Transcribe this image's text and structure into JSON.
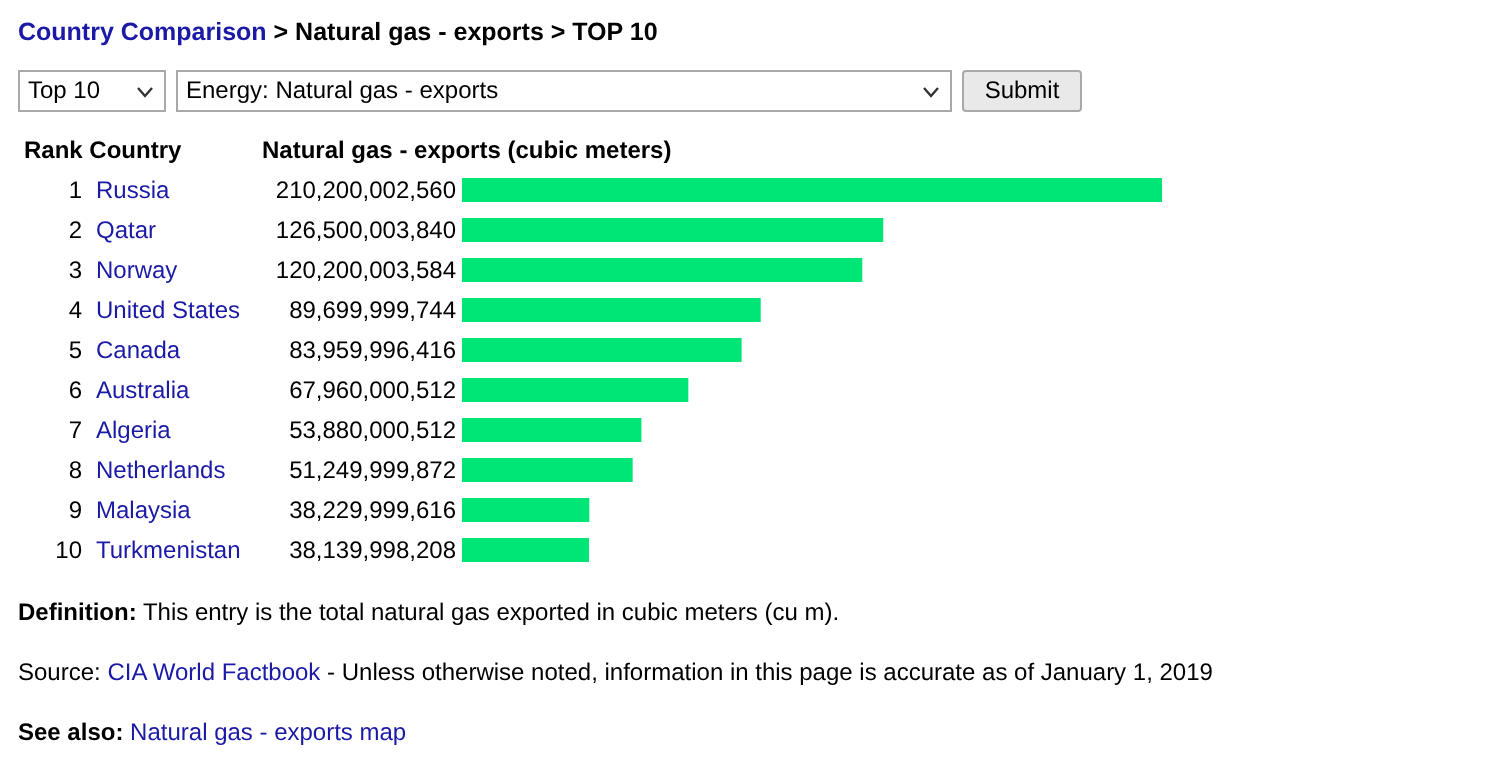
{
  "chart_data": {
    "type": "bar",
    "orientation": "horizontal",
    "title": "Country Comparison > Natural gas - exports > TOP 10",
    "xlabel": "Natural gas - exports (cubic meters)",
    "categories": [
      "1 Russia",
      "2 Qatar",
      "3 Norway",
      "4 United States",
      "5 Canada",
      "6 Australia",
      "7 Algeria",
      "8 Netherlands",
      "9 Malaysia",
      "10 Turkmenistan"
    ],
    "values": [
      210200002560,
      126500003840,
      120200003584,
      89699999744,
      83959996416,
      67960000512,
      53880000512,
      51249999872,
      38229999616,
      38139998208
    ],
    "value_labels": [
      "210,200,002,560",
      "126,500,003,840",
      "120,200,003,584",
      "89,699,999,744",
      "83,959,996,416",
      "67,960,000,512",
      "53,880,000,512",
      "51,249,999,872",
      "38,229,999,616",
      "38,139,998,208"
    ],
    "color": "#00e676",
    "annotations": [
      "Top 10",
      "Energy: Natural gas - exports",
      "Submit",
      "Definition: This entry is the total natural gas exported in cubic meters (cu m).",
      "Source: CIA World Factbook - Unless otherwise noted, information in this page is accurate as of January 1, 2019",
      "See also: Natural gas - exports map",
      "Rank Country"
    ]
  }
}
